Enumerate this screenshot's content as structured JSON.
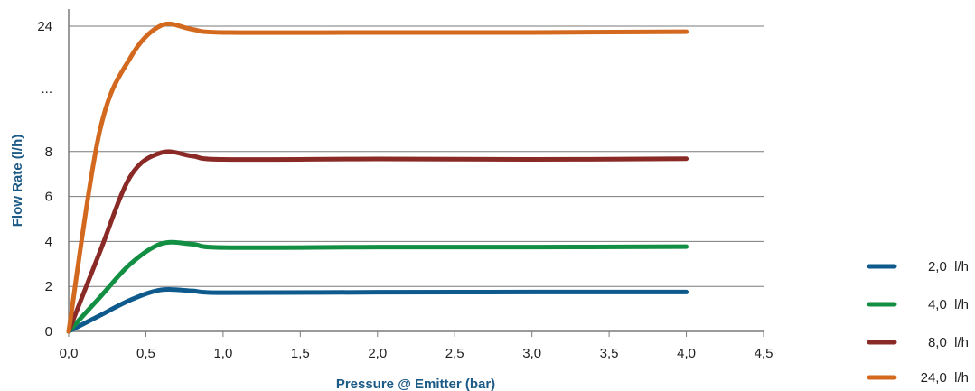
{
  "chart_data": {
    "type": "line",
    "xlabel": "Pressure @ Emitter (bar)",
    "ylabel": "Flow Rate (l/h)",
    "xlim": [
      0,
      4.5
    ],
    "x_ticks": [
      "0,0",
      "0,5",
      "1,0",
      "1,5",
      "2,0",
      "2,5",
      "3,0",
      "3,5",
      "4,0",
      "4,5"
    ],
    "y_ticks": [
      "0",
      "2",
      "4",
      "6",
      "8",
      "...",
      "24"
    ],
    "y_axis_break": "...",
    "grid": "horizontal",
    "legend_position": "right",
    "series": [
      {
        "name": "2,0  l/h",
        "color": "#0f5a8c",
        "x": [
          0.0,
          0.2,
          0.4,
          0.6,
          0.8,
          1.0,
          2.0,
          3.0,
          4.0
        ],
        "y": [
          0.0,
          0.7,
          1.4,
          1.85,
          1.8,
          1.72,
          1.74,
          1.75,
          1.75
        ]
      },
      {
        "name": "4,0  l/h",
        "color": "#138f43",
        "x": [
          0.0,
          0.2,
          0.4,
          0.6,
          0.8,
          1.0,
          2.0,
          3.0,
          4.0
        ],
        "y": [
          0.0,
          1.5,
          3.0,
          3.9,
          3.88,
          3.73,
          3.75,
          3.75,
          3.77
        ]
      },
      {
        "name": "8,0  l/h",
        "color": "#8a2a26",
        "x": [
          0.0,
          0.2,
          0.4,
          0.6,
          0.8,
          1.0,
          2.0,
          3.0,
          4.0
        ],
        "y": [
          0.0,
          3.5,
          6.9,
          7.95,
          7.8,
          7.65,
          7.67,
          7.65,
          7.68
        ]
      },
      {
        "name": "24,0  l/h",
        "color": "#d2691e",
        "x": [
          0.0,
          0.2,
          0.4,
          0.6,
          0.8,
          1.0,
          2.0,
          3.0,
          4.0
        ],
        "y": [
          0.0,
          10.5,
          20.0,
          24.1,
          23.6,
          23.2,
          23.2,
          23.2,
          23.3
        ]
      }
    ]
  }
}
